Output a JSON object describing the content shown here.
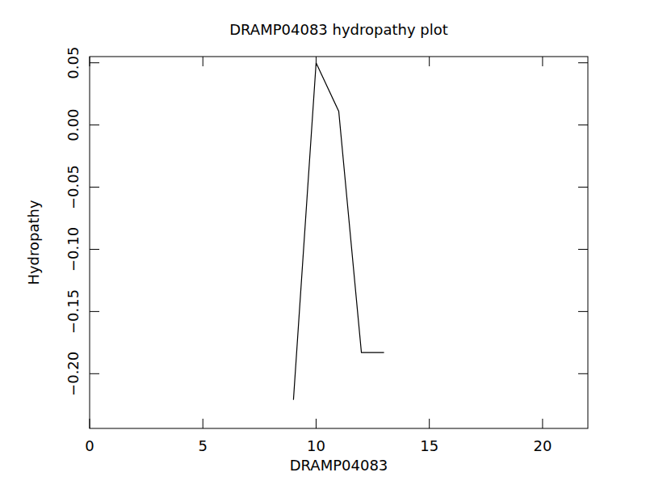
{
  "chart_data": {
    "type": "line",
    "title": "DRAMP04083 hydropathy plot",
    "x_label": "DRAMP04083",
    "y_label": "Hydropathy",
    "x": [
      9,
      10,
      11,
      12,
      13
    ],
    "values": [
      -0.221,
      0.05,
      0.011,
      -0.183,
      -0.183
    ],
    "color": "#000000",
    "xlim": [
      0,
      22
    ],
    "ylim": [
      -0.244,
      0.055
    ],
    "xticks": [
      0,
      5,
      10,
      15,
      20
    ],
    "yticks": [
      {
        "value": -0.2,
        "label": "−0.20"
      },
      {
        "value": -0.15,
        "label": "−0.15"
      },
      {
        "value": -0.1,
        "label": "−0.10"
      },
      {
        "value": -0.05,
        "label": "−0.05"
      },
      {
        "value": 0,
        "label": "0.00"
      },
      {
        "value": 0.05,
        "label": "0.05"
      }
    ]
  }
}
